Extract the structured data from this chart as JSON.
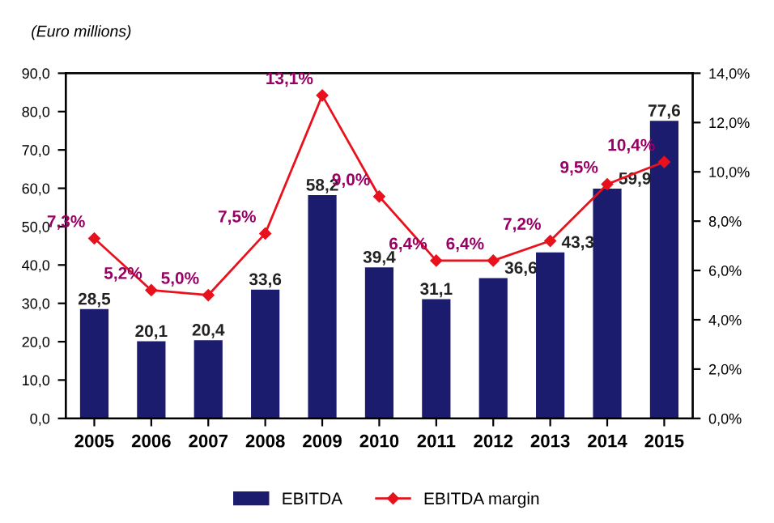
{
  "chart_data": {
    "type": "bar",
    "ylabel": "(Euro millions)",
    "categories": [
      "2005",
      "2006",
      "2007",
      "2008",
      "2009",
      "2010",
      "2011",
      "2012",
      "2013",
      "2014",
      "2015"
    ],
    "series": [
      {
        "name": "EBITDA",
        "color": "#1c1c6e",
        "values": [
          28.5,
          20.1,
          20.4,
          33.6,
          58.2,
          39.4,
          31.1,
          36.6,
          43.3,
          59.9,
          77.6
        ],
        "value_labels": [
          "28,5",
          "20,1",
          "20,4",
          "33,6",
          "58,2",
          "39,4",
          "31,1",
          "36,6",
          "43,3",
          "59,9",
          "77,6"
        ]
      },
      {
        "name": "EBITDA margin",
        "type": "line",
        "axis": "y2",
        "color": "#e8111c",
        "marker": "diamond",
        "line_style": "solid",
        "values": [
          7.3,
          5.2,
          5.0,
          7.5,
          13.1,
          9.0,
          6.4,
          6.4,
          7.2,
          9.5,
          10.4
        ],
        "value_labels": [
          "7,3%",
          "5,2%",
          "5,0%",
          "7,5%",
          "13,1%",
          "9,0%",
          "6,4%",
          "6,4%",
          "7,2%",
          "9,5%",
          "10,4%"
        ]
      }
    ],
    "ylim": [
      0,
      90
    ],
    "yticks": [
      {
        "value": 0,
        "label": "0,0"
      },
      {
        "value": 10,
        "label": "10,0"
      },
      {
        "value": 20,
        "label": "20,0"
      },
      {
        "value": 30,
        "label": "30,0"
      },
      {
        "value": 40,
        "label": "40,0"
      },
      {
        "value": 50,
        "label": "50,0"
      },
      {
        "value": 60,
        "label": "60,0"
      },
      {
        "value": 70,
        "label": "70,0"
      },
      {
        "value": 80,
        "label": "80,0"
      },
      {
        "value": 90,
        "label": "90,0"
      }
    ],
    "y2lim": [
      0,
      14
    ],
    "y2ticks": [
      {
        "value": 0,
        "label": "0,0%"
      },
      {
        "value": 2,
        "label": "2,0%"
      },
      {
        "value": 4,
        "label": "4,0%"
      },
      {
        "value": 6,
        "label": "6,0%"
      },
      {
        "value": 8,
        "label": "8,0%"
      },
      {
        "value": 10,
        "label": "10,0%"
      },
      {
        "value": 12,
        "label": "12,0%"
      },
      {
        "value": 14,
        "label": "14,0%"
      }
    ],
    "grid": false,
    "legend": "bottom"
  }
}
